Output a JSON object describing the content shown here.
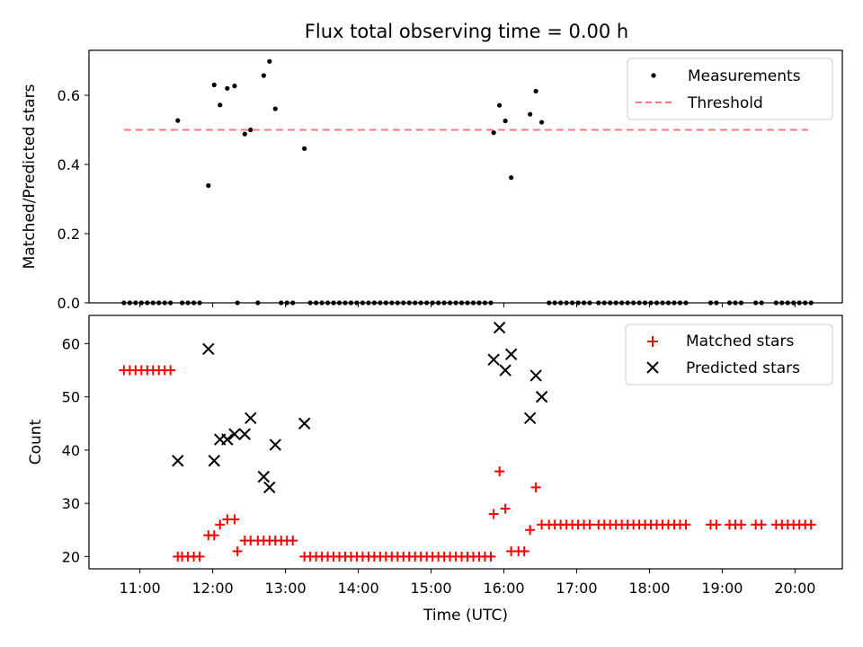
{
  "figure_title": "Flux total observing time = 0.00 h",
  "chart_data": [
    {
      "type": "scatter",
      "ylabel": "Matched/Predicted stars",
      "ylim": [
        0,
        0.73
      ],
      "yticks": [
        0.0,
        0.2,
        0.4,
        0.6
      ],
      "ytick_labels": [
        "0.0",
        "0.2",
        "0.4",
        "0.6"
      ],
      "legend_position": "top-right",
      "series": [
        {
          "name": "Measurements",
          "marker": "dot",
          "color": "#000000",
          "x": [
            10.78,
            10.86,
            10.94,
            11.02,
            11.1,
            11.18,
            11.26,
            11.34,
            11.42,
            11.58,
            11.66,
            11.74,
            11.82,
            12.34,
            12.62,
            12.94,
            13.02,
            13.1,
            13.34,
            13.42,
            13.5,
            13.58,
            13.66,
            13.74,
            13.82,
            13.9,
            13.98,
            14.06,
            14.14,
            14.22,
            14.3,
            14.38,
            14.46,
            14.54,
            14.62,
            14.7,
            14.78,
            14.86,
            14.94,
            15.02,
            15.1,
            15.18,
            15.26,
            15.34,
            15.42,
            15.5,
            15.58,
            15.66,
            15.74,
            15.82,
            16.62,
            16.7,
            16.78,
            16.86,
            16.94,
            17.02,
            17.1,
            17.18,
            17.3,
            17.38,
            17.46,
            17.54,
            17.62,
            17.7,
            17.78,
            17.86,
            17.94,
            18.02,
            18.1,
            18.18,
            18.26,
            18.34,
            18.42,
            18.5,
            18.84,
            18.92,
            19.1,
            19.18,
            19.26,
            19.46,
            19.54,
            19.74,
            19.82,
            19.9,
            19.98,
            20.06,
            20.14,
            20.22,
            11.52,
            11.94,
            12.02,
            12.1,
            12.2,
            12.3,
            12.44,
            12.52,
            12.7,
            12.78,
            12.86,
            13.26,
            15.86,
            15.94,
            16.02,
            16.1,
            16.36,
            16.44,
            16.52
          ],
          "y": [
            0,
            0,
            0,
            0,
            0,
            0,
            0,
            0,
            0,
            0,
            0,
            0,
            0,
            0,
            0,
            0,
            0,
            0,
            0,
            0,
            0,
            0,
            0,
            0,
            0,
            0,
            0,
            0,
            0,
            0,
            0,
            0,
            0,
            0,
            0,
            0,
            0,
            0,
            0,
            0,
            0,
            0,
            0,
            0,
            0,
            0,
            0,
            0,
            0,
            0,
            0,
            0,
            0,
            0,
            0,
            0,
            0,
            0,
            0,
            0,
            0,
            0,
            0,
            0,
            0,
            0,
            0,
            0,
            0,
            0,
            0,
            0,
            0,
            0,
            0,
            0,
            0,
            0,
            0,
            0,
            0,
            0,
            0,
            0,
            0,
            0,
            0,
            0,
            0.527,
            0.339,
            0.63,
            0.572,
            0.62,
            0.627,
            0.488,
            0.5,
            0.657,
            0.698,
            0.561,
            0.446,
            0.492,
            0.571,
            0.526,
            0.362,
            0.545,
            0.612,
            0.522
          ]
        },
        {
          "name": "Threshold",
          "style": "dashed-line",
          "color": "#ff7777",
          "x": [
            10.78,
            20.18
          ],
          "y": [
            0.5,
            0.5
          ]
        }
      ]
    },
    {
      "type": "scatter",
      "xlabel": "Time (UTC)",
      "ylabel": "Count",
      "ylim": [
        17.7,
        65.3
      ],
      "yticks": [
        20,
        30,
        40,
        50,
        60
      ],
      "ytick_labels": [
        "20",
        "30",
        "40",
        "50",
        "60"
      ],
      "legend_position": "top-right",
      "series": [
        {
          "name": "Matched stars",
          "marker": "plus",
          "color": "#ff0000",
          "x": [
            10.78,
            10.86,
            10.94,
            11.02,
            11.1,
            11.18,
            11.26,
            11.34,
            11.42,
            11.52,
            11.58,
            11.66,
            11.74,
            11.82,
            11.94,
            12.02,
            12.1,
            12.2,
            12.3,
            12.34,
            12.44,
            12.52,
            12.62,
            12.7,
            12.78,
            12.86,
            12.94,
            13.02,
            13.1,
            13.26,
            13.34,
            13.42,
            13.5,
            13.58,
            13.66,
            13.74,
            13.82,
            13.9,
            13.98,
            14.06,
            14.14,
            14.22,
            14.3,
            14.38,
            14.46,
            14.54,
            14.62,
            14.7,
            14.78,
            14.86,
            14.94,
            15.02,
            15.1,
            15.18,
            15.26,
            15.34,
            15.42,
            15.5,
            15.58,
            15.66,
            15.74,
            15.82,
            15.86,
            15.94,
            16.02,
            16.1,
            16.2,
            16.28,
            16.36,
            16.44,
            16.52,
            16.62,
            16.7,
            16.78,
            16.86,
            16.94,
            17.02,
            17.1,
            17.18,
            17.3,
            17.38,
            17.46,
            17.54,
            17.62,
            17.7,
            17.78,
            17.86,
            17.94,
            18.02,
            18.1,
            18.18,
            18.26,
            18.34,
            18.42,
            18.5,
            18.84,
            18.92,
            19.1,
            19.18,
            19.26,
            19.46,
            19.54,
            19.74,
            19.82,
            19.9,
            19.98,
            20.06,
            20.14,
            20.22
          ],
          "y": [
            55,
            55,
            55,
            55,
            55,
            55,
            55,
            55,
            55,
            20,
            20,
            20,
            20,
            20,
            24,
            24,
            26,
            27,
            27,
            21,
            23,
            23,
            23,
            23,
            23,
            23,
            23,
            23,
            23,
            20,
            20,
            20,
            20,
            20,
            20,
            20,
            20,
            20,
            20,
            20,
            20,
            20,
            20,
            20,
            20,
            20,
            20,
            20,
            20,
            20,
            20,
            20,
            20,
            20,
            20,
            20,
            20,
            20,
            20,
            20,
            20,
            20,
            28,
            36,
            29,
            21,
            21,
            21,
            25,
            33,
            26,
            26,
            26,
            26,
            26,
            26,
            26,
            26,
            26,
            26,
            26,
            26,
            26,
            26,
            26,
            26,
            26,
            26,
            26,
            26,
            26,
            26,
            26,
            26,
            26,
            26,
            26,
            26,
            26,
            26,
            26,
            26,
            26,
            26,
            26,
            26,
            26,
            26,
            26
          ]
        },
        {
          "name": "Predicted stars",
          "marker": "x",
          "color": "#000000",
          "x": [
            11.52,
            11.94,
            12.02,
            12.1,
            12.2,
            12.3,
            12.44,
            12.52,
            12.7,
            12.78,
            12.86,
            13.26,
            15.86,
            15.94,
            16.02,
            16.1,
            16.36,
            16.44,
            16.52
          ],
          "y": [
            38,
            59,
            38,
            42,
            42,
            43,
            43,
            46,
            35,
            33,
            41,
            45,
            57,
            63,
            55,
            58,
            46,
            54,
            50
          ]
        }
      ]
    }
  ],
  "x_axis": {
    "xlim": [
      10.3,
      20.65
    ],
    "ticks": [
      11,
      12,
      13,
      14,
      15,
      16,
      17,
      18,
      19,
      20
    ],
    "tick_labels": [
      "11:00",
      "12:00",
      "13:00",
      "14:00",
      "15:00",
      "16:00",
      "17:00",
      "18:00",
      "19:00",
      "20:00"
    ]
  }
}
